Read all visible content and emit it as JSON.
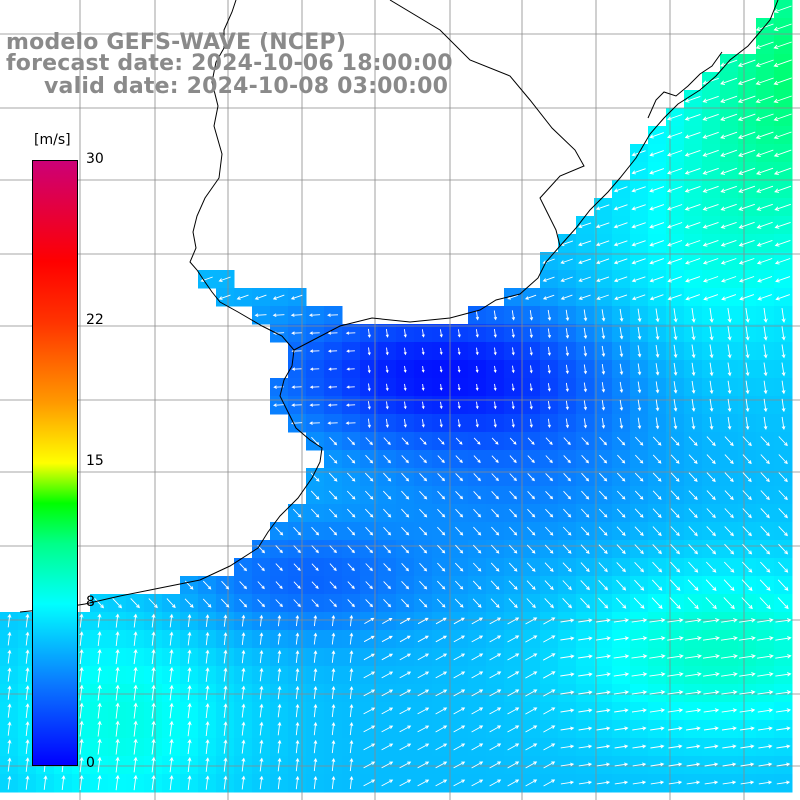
{
  "title": {
    "model": "modelo GEFS-WAVE (NCEP)",
    "forecast": "forecast date: 2024-10-06 18:00:00",
    "valid": "valid date: 2024-10-08 03:00:00"
  },
  "colorbar": {
    "unit": "[m/s]",
    "ticks": [
      "30",
      "22",
      "15",
      "8",
      "0"
    ],
    "tick_values": [
      30,
      22,
      15,
      8,
      0
    ],
    "min": 0,
    "max": 30,
    "stops": [
      {
        "v": 0,
        "color": "#0000ff"
      },
      {
        "v": 4,
        "color": "#0a78ff"
      },
      {
        "v": 8,
        "color": "#00ffff"
      },
      {
        "v": 11,
        "color": "#00ff88"
      },
      {
        "v": 13,
        "color": "#00ff00"
      },
      {
        "v": 15,
        "color": "#ffff00"
      },
      {
        "v": 18,
        "color": "#ff9900"
      },
      {
        "v": 22,
        "color": "#ff3300"
      },
      {
        "v": 25,
        "color": "#ff0000"
      },
      {
        "v": 30,
        "color": "#cc0077"
      }
    ]
  },
  "map": {
    "variable": "wind speed",
    "land_color": "#ffffff",
    "coastline_color": "#000000",
    "grid_color": "#8a8a8a",
    "arrow_color": "#ffffff"
  }
}
